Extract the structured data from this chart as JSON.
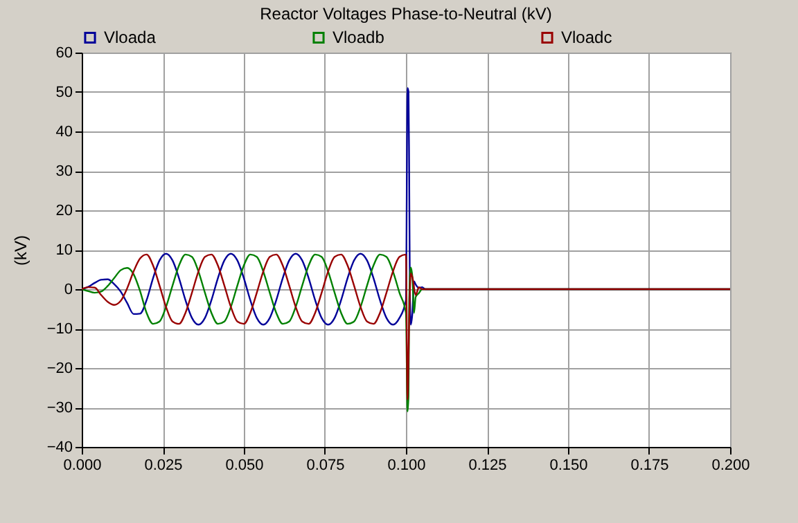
{
  "chart_data": {
    "type": "line",
    "title": "Reactor Voltages Phase-to-Neutral (kV)",
    "ylabel": "(kV)",
    "xlim": [
      0,
      0.2
    ],
    "xticks": [
      {
        "value": 0,
        "label": "0.000"
      },
      {
        "value": 0.025,
        "label": "0.025"
      },
      {
        "value": 0.05,
        "label": "0.050"
      },
      {
        "value": 0.075,
        "label": "0.075"
      },
      {
        "value": 0.1,
        "label": "0.100"
      },
      {
        "value": 0.125,
        "label": "0.125"
      },
      {
        "value": 0.15,
        "label": "0.150"
      },
      {
        "value": 0.175,
        "label": "0.175"
      },
      {
        "value": 0.2,
        "label": "0.200"
      }
    ],
    "ylim": [
      -40,
      60
    ],
    "yticks": [
      -40,
      -30,
      -20,
      -10,
      0,
      10,
      20,
      30,
      40,
      50,
      60
    ],
    "grid": true,
    "legend": "top",
    "series": [
      {
        "name": "Vloada",
        "color": "#000099",
        "x": [
          0,
          0.002,
          0.004,
          0.006,
          0.008,
          0.01,
          0.012,
          0.014,
          0.016,
          0.018,
          0.02,
          0.022,
          0.024,
          0.026,
          0.028,
          0.03,
          0.032,
          0.034,
          0.036,
          0.038,
          0.04,
          0.042,
          0.044,
          0.046,
          0.048,
          0.05,
          0.052,
          0.054,
          0.056,
          0.058,
          0.06,
          0.062,
          0.064,
          0.066,
          0.068,
          0.07,
          0.072,
          0.074,
          0.076,
          0.078,
          0.08,
          0.082,
          0.084,
          0.086,
          0.088,
          0.09,
          0.092,
          0.094,
          0.096,
          0.098,
          0.1,
          0.1005,
          0.1008,
          0.101,
          0.1012,
          0.1015,
          0.102,
          0.1025,
          0.103,
          0.104,
          0.105,
          0.106,
          0.2
        ],
        "values": [
          0,
          0.6,
          1.6,
          2.4,
          2.5,
          1.3,
          -0.6,
          -3.5,
          -6.3,
          -6.2,
          -2.8,
          2.8,
          7.3,
          9,
          7.3,
          2.8,
          -2.8,
          -7.3,
          -9,
          -7.3,
          -2.8,
          2.8,
          7.3,
          9,
          7.3,
          2.8,
          -2.8,
          -7.3,
          -9,
          -7.3,
          -2.8,
          2.8,
          7.3,
          9,
          7.3,
          2.8,
          -2.8,
          -7.3,
          -9,
          -7.3,
          -2.8,
          2.8,
          7.3,
          9,
          7.3,
          2.8,
          -2.8,
          -7.3,
          -9,
          -7.3,
          -2.8,
          51,
          50,
          30,
          2,
          -9,
          -6,
          2,
          1.2,
          0.3,
          0.5,
          0,
          0
        ]
      },
      {
        "name": "Vloadb",
        "color": "#008000",
        "x": [
          0,
          0.002,
          0.004,
          0.006,
          0.008,
          0.01,
          0.012,
          0.014,
          0.016,
          0.018,
          0.02,
          0.022,
          0.024,
          0.026,
          0.028,
          0.03,
          0.032,
          0.034,
          0.036,
          0.038,
          0.04,
          0.042,
          0.044,
          0.046,
          0.048,
          0.05,
          0.052,
          0.054,
          0.056,
          0.058,
          0.06,
          0.062,
          0.064,
          0.066,
          0.068,
          0.07,
          0.072,
          0.074,
          0.076,
          0.078,
          0.08,
          0.082,
          0.084,
          0.086,
          0.088,
          0.09,
          0.092,
          0.094,
          0.096,
          0.098,
          0.1,
          0.1005,
          0.1008,
          0.101,
          0.1015,
          0.102,
          0.1025,
          0.103,
          0.104,
          0.105,
          0.2
        ],
        "values": [
          0,
          -0.5,
          -0.9,
          -0.6,
          0.8,
          2.8,
          4.8,
          5.4,
          3.8,
          -0.5,
          -6.0,
          -8.8,
          -8.2,
          -4.5,
          0.9,
          6.0,
          8.8,
          8.2,
          4.5,
          -0.9,
          -6.0,
          -8.8,
          -8.2,
          -4.5,
          0.9,
          6.0,
          8.8,
          8.2,
          4.5,
          -0.9,
          -6.0,
          -8.8,
          -8.2,
          -4.5,
          0.9,
          6.0,
          8.8,
          8.2,
          4.5,
          -0.9,
          -6.0,
          -8.8,
          -8.2,
          -4.5,
          0.9,
          6.0,
          8.8,
          8.2,
          4.5,
          -0.9,
          -6.0,
          -31,
          -27,
          -3,
          5.5,
          3,
          -6,
          -2,
          -1,
          0,
          0
        ]
      },
      {
        "name": "Vloadc",
        "color": "#990000",
        "x": [
          0,
          0.002,
          0.004,
          0.006,
          0.008,
          0.01,
          0.012,
          0.014,
          0.016,
          0.018,
          0.02,
          0.022,
          0.024,
          0.026,
          0.028,
          0.03,
          0.032,
          0.034,
          0.036,
          0.038,
          0.04,
          0.042,
          0.044,
          0.046,
          0.048,
          0.05,
          0.052,
          0.054,
          0.056,
          0.058,
          0.06,
          0.062,
          0.064,
          0.066,
          0.068,
          0.07,
          0.072,
          0.074,
          0.076,
          0.078,
          0.08,
          0.082,
          0.084,
          0.086,
          0.088,
          0.09,
          0.092,
          0.094,
          0.096,
          0.098,
          0.1,
          0.1005,
          0.101,
          0.1015,
          0.102,
          0.103,
          0.104,
          0.105,
          0.2
        ],
        "values": [
          0,
          0.5,
          0.4,
          -1.5,
          -3.2,
          -4.0,
          -3.0,
          0.2,
          4.5,
          7.8,
          8.8,
          6.0,
          0.9,
          -4.5,
          -8.2,
          -8.8,
          -6.0,
          -0.9,
          4.5,
          8.2,
          8.8,
          6.0,
          0.9,
          -4.5,
          -8.2,
          -8.8,
          -6.0,
          -0.9,
          4.5,
          8.2,
          8.8,
          6.0,
          0.9,
          -4.5,
          -8.2,
          -8.8,
          -6.0,
          -0.9,
          4.5,
          8.2,
          8.8,
          6.0,
          0.9,
          -4.5,
          -8.2,
          -8.8,
          -6.0,
          -0.9,
          4.5,
          8.2,
          8.8,
          -28,
          -8,
          4,
          3,
          -1.5,
          0.5,
          0,
          0
        ]
      }
    ]
  }
}
